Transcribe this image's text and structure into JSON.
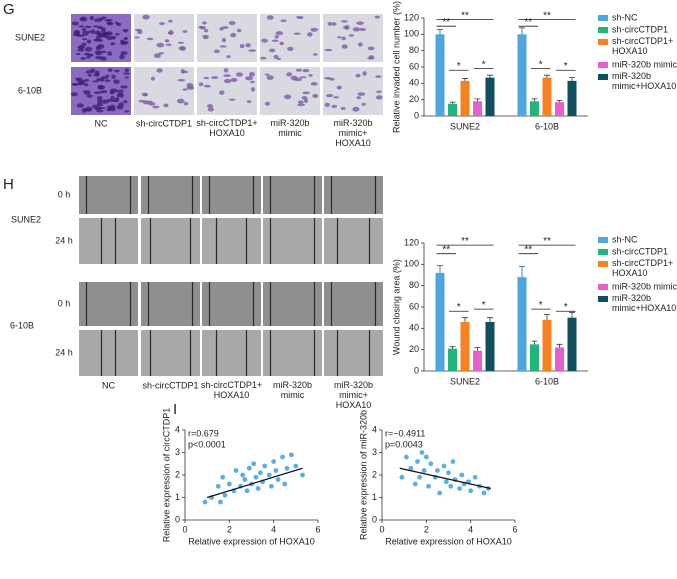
{
  "panel_letters": [
    "G",
    "H",
    "I"
  ],
  "invasion_images": {
    "rows": [
      "SUNE2",
      "6-10B"
    ],
    "columns": [
      "NC",
      "sh-circCTDP1",
      "sh-circCTDP1+\nHOXA10",
      "miR-320b\nmimic",
      "miR-320b\nmimic+\nHOXA10"
    ]
  },
  "wound_images": {
    "rows": [
      "SUNE2",
      "6-10B"
    ],
    "times": [
      "0 h",
      "24 h",
      "0 h",
      "24 h"
    ],
    "columns": [
      "NC",
      "sh-circCTDP1",
      "sh-circCTDP1+\nHOXA10",
      "miR-320b\nmimic",
      "miR-320b\nmimic+\nHOXA10"
    ]
  },
  "chart_data": [
    {
      "type": "bar",
      "y_label": "Relative invaded cell number (%)",
      "categories": [
        "SUNE2",
        "6-10B"
      ],
      "ylim": [
        0,
        120
      ],
      "yticks": [
        0,
        20,
        40,
        60,
        80,
        100,
        120
      ],
      "series": [
        {
          "name": "sh-NC",
          "color": "#4da6e0",
          "values": [
            100,
            100
          ],
          "errors": [
            6,
            8
          ]
        },
        {
          "name": "sh-circCTDP1",
          "color": "#1fb57c",
          "values": [
            15,
            18
          ],
          "errors": [
            2,
            3
          ]
        },
        {
          "name": "sh-circCTDP1+\nHOXA10",
          "color": "#f5821f",
          "values": [
            43,
            47
          ],
          "errors": [
            3,
            3
          ]
        },
        {
          "name": "miR-320b mimic",
          "color": "#e65fcf",
          "values": [
            18,
            17
          ],
          "errors": [
            3,
            2
          ]
        },
        {
          "name": "miR-320b\nmimic+HOXA10",
          "color": "#0f4f5e",
          "values": [
            47,
            43
          ],
          "errors": [
            3,
            4
          ]
        }
      ],
      "annotations": [
        "**",
        "**",
        "*",
        "*",
        "**",
        "**",
        "*",
        "*"
      ]
    },
    {
      "type": "bar",
      "y_label": "Wound closing area (%)",
      "categories": [
        "SUNE2",
        "6-10B"
      ],
      "ylim": [
        0,
        120
      ],
      "yticks": [
        0,
        20,
        40,
        60,
        80,
        100,
        120
      ],
      "series": [
        {
          "name": "sh-NC",
          "color": "#4da6e0",
          "values": [
            92,
            88
          ],
          "errors": [
            7,
            10
          ]
        },
        {
          "name": "sh-circCTDP1",
          "color": "#1fb57c",
          "values": [
            21,
            25
          ],
          "errors": [
            2,
            3
          ]
        },
        {
          "name": "sh-circCTDP1+\nHOXA10",
          "color": "#f5821f",
          "values": [
            46,
            48
          ],
          "errors": [
            4,
            5
          ]
        },
        {
          "name": "miR-320b mimic",
          "color": "#e65fcf",
          "values": [
            19,
            22
          ],
          "errors": [
            3,
            3
          ]
        },
        {
          "name": "miR-320b\nmimic+HOXA10",
          "color": "#0f4f5e",
          "values": [
            46,
            50
          ],
          "errors": [
            4,
            5
          ]
        }
      ],
      "annotations": [
        "**",
        "**",
        "*",
        "*",
        "**",
        "**",
        "*",
        "*"
      ]
    },
    {
      "type": "scatter",
      "x_label": "Relative expression of HOXA10",
      "y_label": "Relative expression of circCTDP1",
      "xlim": [
        0,
        6
      ],
      "xticks": [
        0,
        2,
        4,
        6
      ],
      "ylim": [
        0,
        4
      ],
      "yticks": [
        0,
        1,
        2,
        3,
        4
      ],
      "color": "#5aaee6",
      "annotations": [
        "r=0.679",
        "p<0.0001"
      ],
      "x": [
        0.9,
        1.2,
        1.5,
        1.6,
        1.7,
        1.8,
        2.0,
        2.2,
        2.3,
        2.5,
        2.6,
        2.7,
        2.8,
        2.9,
        3.0,
        3.1,
        3.2,
        3.3,
        3.4,
        3.5,
        3.6,
        3.8,
        3.9,
        4.0,
        4.1,
        4.2,
        4.4,
        4.5,
        4.6,
        4.8,
        5.0,
        5.3
      ],
      "y": [
        0.8,
        1.0,
        1.5,
        0.8,
        1.9,
        1.1,
        1.6,
        1.3,
        2.2,
        1.5,
        2.0,
        1.8,
        1.3,
        2.3,
        1.6,
        2.5,
        1.9,
        1.4,
        2.1,
        1.7,
        2.4,
        2.0,
        1.5,
        2.6,
        2.2,
        1.8,
        2.8,
        1.6,
        2.3,
        2.9,
        2.4,
        2.0
      ],
      "fit": {
        "x": [
          1.0,
          5.3
        ],
        "y": [
          1.0,
          2.3
        ]
      }
    },
    {
      "type": "scatter",
      "x_label": "Relative expression of HOXA10",
      "y_label": "Relative expression of miR-320b",
      "xlim": [
        0,
        6
      ],
      "xticks": [
        0,
        2,
        4,
        6
      ],
      "ylim": [
        0,
        4
      ],
      "yticks": [
        0,
        1,
        2,
        3,
        4
      ],
      "color": "#5aaee6",
      "annotations": [
        "r=−0.4911",
        "p=0.0043"
      ],
      "x": [
        0.9,
        1.1,
        1.3,
        1.5,
        1.6,
        1.7,
        1.8,
        1.9,
        2.0,
        2.1,
        2.2,
        2.4,
        2.5,
        2.6,
        2.8,
        2.9,
        3.0,
        3.1,
        3.2,
        3.3,
        3.5,
        3.6,
        3.7,
        3.9,
        4.0,
        4.2,
        4.4,
        4.6,
        4.8
      ],
      "y": [
        1.9,
        2.8,
        2.3,
        1.6,
        2.6,
        1.9,
        3.0,
        2.2,
        2.8,
        1.5,
        2.5,
        1.9,
        2.2,
        1.2,
        2.4,
        1.7,
        2.1,
        1.5,
        2.6,
        1.8,
        1.4,
        2.0,
        1.6,
        1.7,
        1.3,
        1.9,
        1.5,
        1.2,
        1.4
      ],
      "fit": {
        "x": [
          0.8,
          4.9
        ],
        "y": [
          2.3,
          1.4
        ]
      }
    }
  ]
}
